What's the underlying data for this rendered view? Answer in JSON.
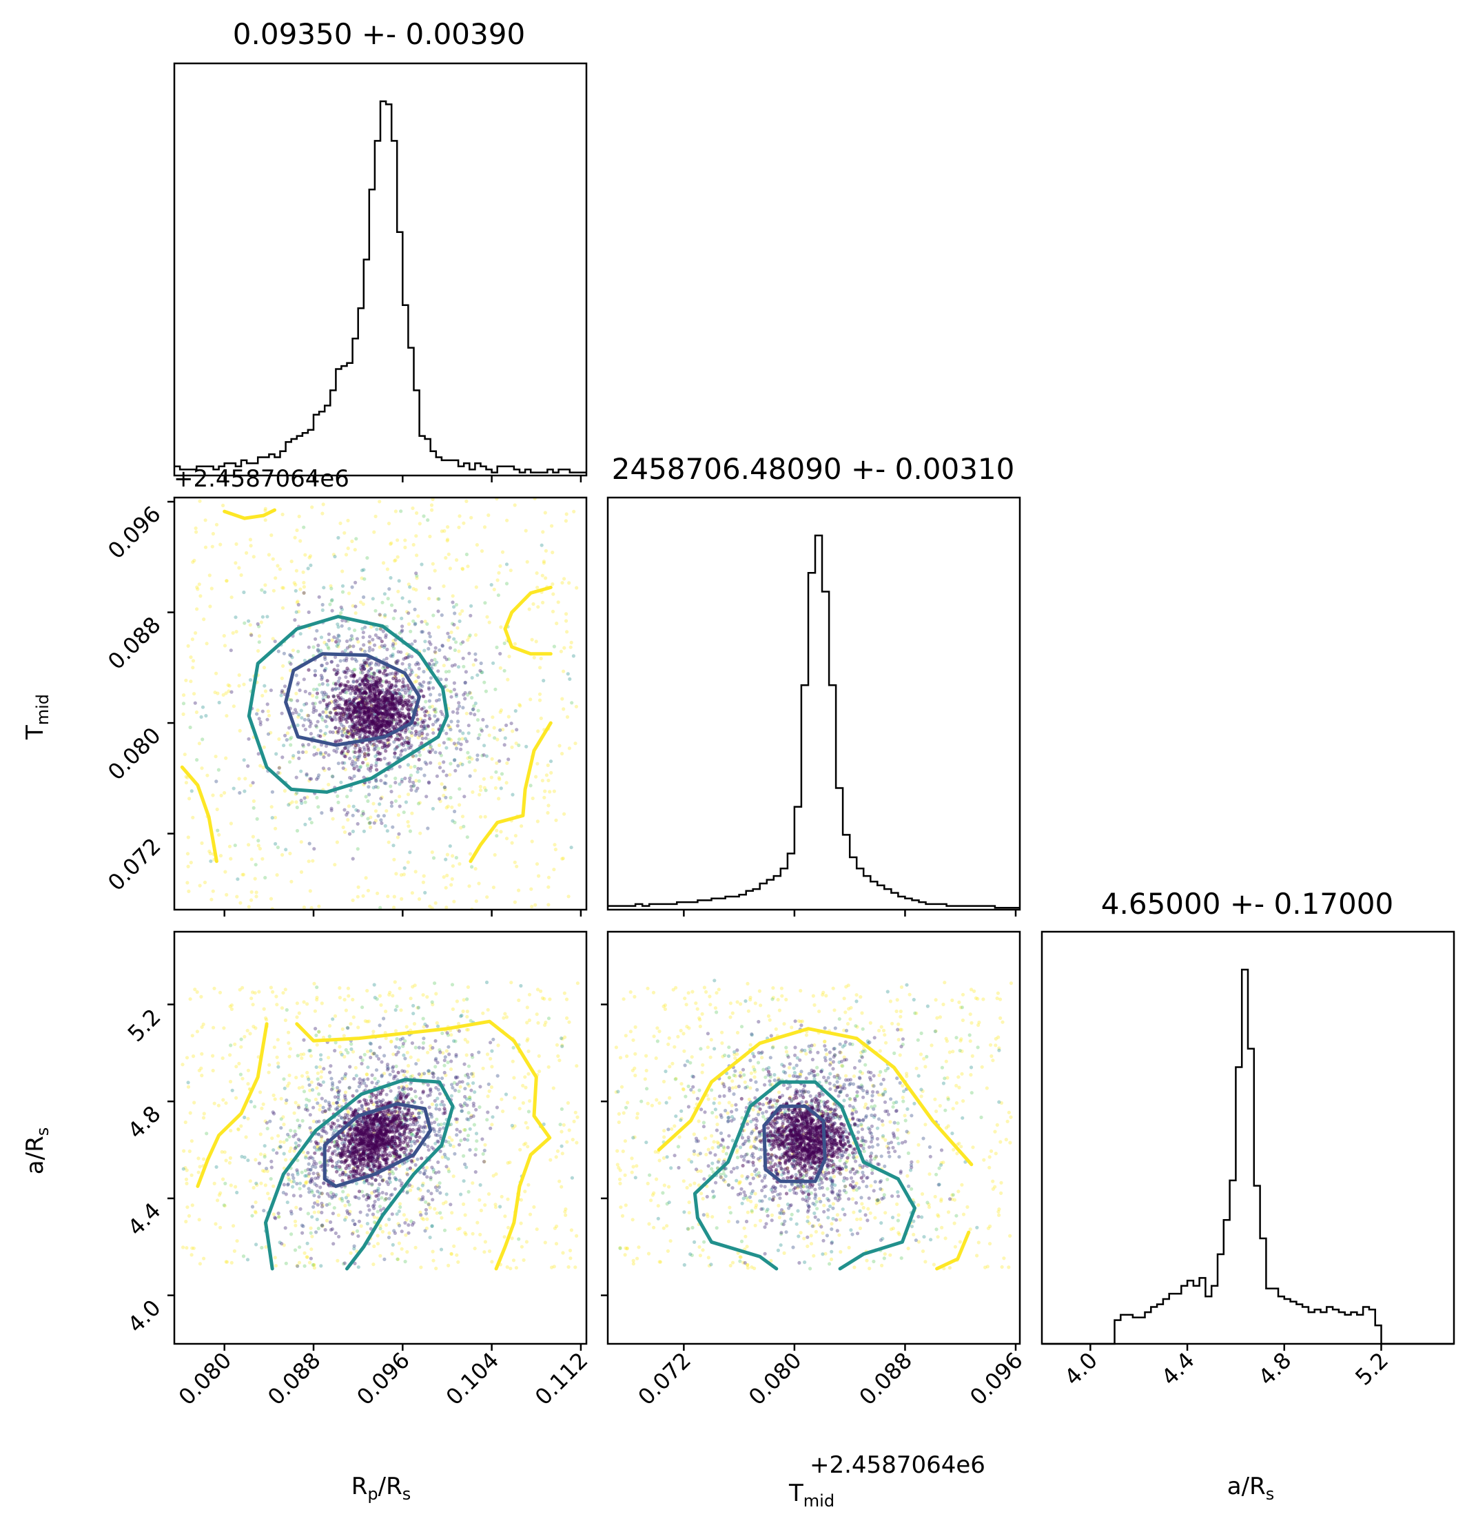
{
  "chart_data": {
    "type": "scatter",
    "layout": "corner-plot",
    "parameters": [
      {
        "key": "rprs",
        "label_main": "R",
        "label_sub": "p",
        "label_tail": "/R",
        "label_sub2": "s"
      },
      {
        "key": "tmid",
        "label_main": "T",
        "label_sub": "mid",
        "label_tail": "",
        "label_sub2": ""
      },
      {
        "key": "ars",
        "label_main": "a/R",
        "label_sub": "s",
        "label_tail": "",
        "label_sub2": ""
      }
    ],
    "titles": [
      "0.09350 +- 0.00390",
      "2458706.48090 +- 0.00310",
      "4.65000 +- 0.17000"
    ],
    "offset_label": "+2.4587064e6",
    "ranges": {
      "rprs": [
        0.0755,
        0.1125
      ],
      "tmid": [
        0.0665,
        0.0963
      ],
      "ars": [
        3.8,
        5.5
      ]
    },
    "ticks": {
      "rprs": [
        "0.080",
        "0.088",
        "0.096",
        "0.104",
        "0.112"
      ],
      "tmid": [
        "0.072",
        "0.080",
        "0.088",
        "0.096"
      ],
      "ars": [
        "4.0",
        "4.4",
        "4.8",
        "5.2"
      ]
    },
    "medians": {
      "rprs": 0.0935,
      "tmid": 0.0809,
      "ars": 4.65
    },
    "sigmas": {
      "rprs": 0.0039,
      "tmid": 0.0031,
      "ars": 0.17
    },
    "colors": {
      "inner_contour": "#3b528b",
      "middle_contour": "#21908c",
      "outer_contour": "#fde725",
      "core_points": "#440154",
      "histogram": "#000000"
    },
    "histograms": {
      "rprs": {
        "bin_start": 0.0755,
        "bin_width": 0.0005,
        "counts": [
          3,
          2,
          2,
          2,
          3,
          3,
          3,
          2,
          3,
          4,
          4,
          3,
          5,
          4,
          4,
          6,
          6,
          7,
          6,
          8,
          11,
          12,
          13,
          14,
          15,
          20,
          21,
          23,
          28,
          35,
          36,
          37,
          45,
          55,
          71,
          94,
          110,
          123,
          122,
          110,
          80,
          56,
          42,
          28,
          13,
          12,
          8,
          6,
          5,
          5,
          5,
          3,
          4,
          2,
          4,
          3,
          2,
          1,
          3,
          3,
          3,
          2,
          1,
          2,
          1,
          1,
          1,
          2,
          1,
          2,
          2,
          1,
          1,
          1
        ]
      },
      "tmid": {
        "bin_start": 0.0665,
        "bin_width": 0.0005,
        "counts": [
          2,
          2,
          2,
          2,
          3,
          2,
          3,
          3,
          3,
          3,
          4,
          4,
          4,
          5,
          5,
          6,
          6,
          7,
          7,
          8,
          10,
          11,
          14,
          16,
          18,
          22,
          30,
          55,
          120,
          180,
          200,
          170,
          120,
          65,
          40,
          28,
          22,
          18,
          15,
          13,
          11,
          9,
          7,
          6,
          5,
          4,
          3,
          3,
          3,
          2,
          2,
          2,
          2,
          2,
          2,
          2,
          1,
          1,
          1,
          1
        ]
      },
      "ars": {
        "bin_start": 3.8,
        "bin_width": 0.025,
        "counts": [
          0,
          0,
          0,
          0,
          0,
          0,
          0,
          0,
          0,
          0,
          0,
          0,
          9,
          11,
          11,
          10,
          10,
          12,
          14,
          15,
          17,
          19,
          19,
          22,
          24,
          22,
          25,
          18,
          22,
          34,
          47,
          62,
          105,
          142,
          112,
          60,
          40,
          21,
          21,
          18,
          17,
          16,
          15,
          14,
          12,
          13,
          12,
          14,
          13,
          12,
          11,
          12,
          11,
          14,
          13,
          7,
          0,
          0,
          0,
          0,
          0,
          0,
          0,
          0,
          0,
          0,
          0,
          0
        ]
      }
    },
    "scatter_pairs": [
      {
        "x": "rprs",
        "y": "tmid",
        "correlation": 0.0
      },
      {
        "x": "rprs",
        "y": "ars",
        "correlation": 0.35
      },
      {
        "x": "tmid",
        "y": "ars",
        "correlation": 0.0
      }
    ],
    "contours": [
      {
        "x": "rprs",
        "y": "tmid",
        "level": "inner",
        "points": [
          [
            0.0855,
            0.0815
          ],
          [
            0.0862,
            0.0838
          ],
          [
            0.0888,
            0.085
          ],
          [
            0.0928,
            0.0849
          ],
          [
            0.0962,
            0.0836
          ],
          [
            0.0975,
            0.0819
          ],
          [
            0.0968,
            0.08
          ],
          [
            0.0944,
            0.079
          ],
          [
            0.09,
            0.0784
          ],
          [
            0.0866,
            0.079
          ],
          [
            0.0855,
            0.0815
          ]
        ]
      },
      {
        "x": "rprs",
        "y": "tmid",
        "level": "middle",
        "points": [
          [
            0.0822,
            0.0805
          ],
          [
            0.083,
            0.0843
          ],
          [
            0.0865,
            0.0868
          ],
          [
            0.0902,
            0.0877
          ],
          [
            0.0942,
            0.087
          ],
          [
            0.0975,
            0.085
          ],
          [
            0.0996,
            0.0825
          ],
          [
            0.1,
            0.0805
          ],
          [
            0.0992,
            0.079
          ],
          [
            0.0968,
            0.0778
          ],
          [
            0.0932,
            0.076
          ],
          [
            0.0892,
            0.075
          ],
          [
            0.086,
            0.0752
          ],
          [
            0.0838,
            0.0768
          ],
          [
            0.0822,
            0.0805
          ]
        ]
      },
      {
        "x": "rprs",
        "y": "tmid",
        "level": "outer",
        "points": [
          [
            0.08,
            0.0953
          ],
          [
            0.0818,
            0.0948
          ],
          [
            0.0835,
            0.095
          ],
          [
            0.0845,
            0.0954
          ]
        ]
      },
      {
        "x": "rprs",
        "y": "tmid",
        "level": "outer",
        "points": [
          [
            0.1093,
            0.0898
          ],
          [
            0.1075,
            0.0894
          ],
          [
            0.1058,
            0.088
          ],
          [
            0.1052,
            0.0868
          ],
          [
            0.1058,
            0.0855
          ],
          [
            0.1075,
            0.085
          ],
          [
            0.1093,
            0.085
          ]
        ]
      },
      {
        "x": "rprs",
        "y": "tmid",
        "level": "outer",
        "points": [
          [
            0.0762,
            0.0768
          ],
          [
            0.0776,
            0.0755
          ],
          [
            0.0786,
            0.0732
          ],
          [
            0.0793,
            0.07
          ]
        ]
      },
      {
        "x": "rprs",
        "y": "tmid",
        "level": "outer",
        "points": [
          [
            0.1093,
            0.08
          ],
          [
            0.1078,
            0.078
          ],
          [
            0.107,
            0.0752
          ],
          [
            0.1068,
            0.0733
          ],
          [
            0.1045,
            0.0728
          ],
          [
            0.103,
            0.0712
          ],
          [
            0.1021,
            0.07
          ]
        ]
      },
      {
        "x": "rprs",
        "y": "ars",
        "level": "inner",
        "points": [
          [
            0.089,
            4.48
          ],
          [
            0.089,
            4.62
          ],
          [
            0.092,
            4.74
          ],
          [
            0.0955,
            4.79
          ],
          [
            0.098,
            4.77
          ],
          [
            0.0985,
            4.68
          ],
          [
            0.097,
            4.58
          ],
          [
            0.0935,
            4.5
          ],
          [
            0.09,
            4.45
          ],
          [
            0.089,
            4.48
          ]
        ]
      },
      {
        "x": "rprs",
        "y": "ars",
        "level": "middle",
        "points": [
          [
            0.0843,
            4.11
          ],
          [
            0.0837,
            4.3
          ],
          [
            0.0853,
            4.5
          ],
          [
            0.0882,
            4.68
          ],
          [
            0.0923,
            4.83
          ],
          [
            0.0962,
            4.89
          ],
          [
            0.0993,
            4.88
          ],
          [
            0.1005,
            4.78
          ],
          [
            0.0995,
            4.62
          ],
          [
            0.097,
            4.5
          ],
          [
            0.0942,
            4.33
          ],
          [
            0.0925,
            4.2
          ],
          [
            0.091,
            4.11
          ]
        ]
      },
      {
        "x": "rprs",
        "y": "ars",
        "level": "outer",
        "points": [
          [
            0.0776,
            4.45
          ],
          [
            0.0785,
            4.56
          ],
          [
            0.0795,
            4.66
          ],
          [
            0.0815,
            4.75
          ],
          [
            0.083,
            4.9
          ],
          [
            0.0838,
            5.12
          ]
        ]
      },
      {
        "x": "rprs",
        "y": "ars",
        "level": "outer",
        "points": [
          [
            0.0865,
            5.12
          ],
          [
            0.088,
            5.05
          ],
          [
            0.092,
            5.06
          ],
          [
            0.096,
            5.08
          ],
          [
            0.1,
            5.1
          ],
          [
            0.1038,
            5.13
          ],
          [
            0.106,
            5.05
          ],
          [
            0.108,
            4.9
          ],
          [
            0.1078,
            4.74
          ],
          [
            0.1092,
            4.65
          ]
        ]
      },
      {
        "x": "rprs",
        "y": "ars",
        "level": "outer",
        "points": [
          [
            0.1092,
            4.65
          ],
          [
            0.1075,
            4.58
          ],
          [
            0.1065,
            4.45
          ],
          [
            0.106,
            4.3
          ],
          [
            0.1052,
            4.2
          ],
          [
            0.1044,
            4.11
          ]
        ]
      },
      {
        "x": "tmid",
        "y": "ars",
        "level": "inner",
        "points": [
          [
            0.0779,
            4.52
          ],
          [
            0.0778,
            4.7
          ],
          [
            0.079,
            4.78
          ],
          [
            0.0808,
            4.78
          ],
          [
            0.0821,
            4.72
          ],
          [
            0.0822,
            4.56
          ],
          [
            0.0815,
            4.47
          ],
          [
            0.079,
            4.47
          ],
          [
            0.0779,
            4.52
          ]
        ]
      },
      {
        "x": "tmid",
        "y": "ars",
        "level": "middle",
        "points": [
          [
            0.0787,
            4.11
          ],
          [
            0.0775,
            4.16
          ],
          [
            0.074,
            4.22
          ],
          [
            0.073,
            4.32
          ],
          [
            0.0728,
            4.42
          ],
          [
            0.0752,
            4.55
          ],
          [
            0.0768,
            4.78
          ],
          [
            0.079,
            4.88
          ],
          [
            0.0815,
            4.88
          ],
          [
            0.0834,
            4.78
          ],
          [
            0.085,
            4.55
          ],
          [
            0.0875,
            4.48
          ],
          [
            0.0887,
            4.36
          ],
          [
            0.0878,
            4.22
          ],
          [
            0.085,
            4.17
          ],
          [
            0.0833,
            4.11
          ]
        ]
      },
      {
        "x": "tmid",
        "y": "ars",
        "level": "outer",
        "points": [
          [
            0.0702,
            4.6
          ],
          [
            0.0725,
            4.72
          ],
          [
            0.074,
            4.88
          ],
          [
            0.0775,
            5.04
          ],
          [
            0.081,
            5.1
          ],
          [
            0.0845,
            5.06
          ],
          [
            0.0872,
            4.94
          ],
          [
            0.09,
            4.72
          ],
          [
            0.0928,
            4.54
          ]
        ]
      },
      {
        "x": "tmid",
        "y": "ars",
        "level": "outer",
        "points": [
          [
            0.0903,
            4.11
          ],
          [
            0.0918,
            4.15
          ],
          [
            0.0926,
            4.26
          ]
        ]
      }
    ]
  }
}
